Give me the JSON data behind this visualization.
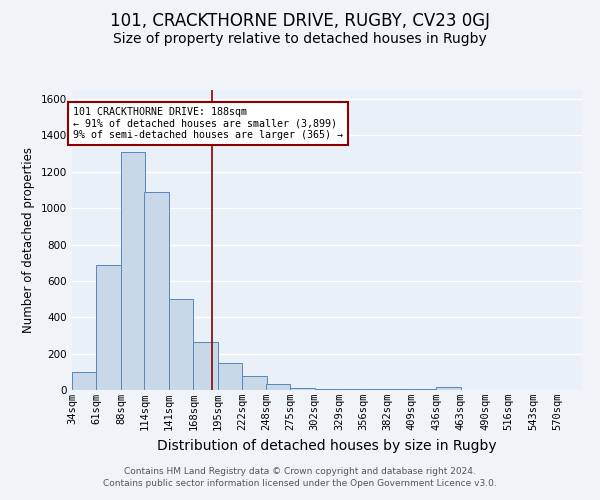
{
  "title1": "101, CRACKTHORNE DRIVE, RUGBY, CV23 0GJ",
  "title2": "Size of property relative to detached houses in Rugby",
  "xlabel": "Distribution of detached houses by size in Rugby",
  "ylabel": "Number of detached properties",
  "bin_edges": [
    34,
    61,
    88,
    114,
    141,
    168,
    195,
    222,
    248,
    275,
    302,
    329,
    356,
    382,
    409,
    436,
    463,
    490,
    516,
    543,
    570
  ],
  "bar_heights": [
    100,
    690,
    1310,
    1090,
    500,
    265,
    150,
    75,
    35,
    10,
    5,
    4,
    3,
    3,
    3,
    15,
    2,
    2,
    2,
    2
  ],
  "bar_color": "#c8d8e8",
  "bar_edge_color": "#5588bb",
  "property_size": 188,
  "vline_color": "#8b0000",
  "annotation_text": "101 CRACKTHORNE DRIVE: 188sqm\n← 91% of detached houses are smaller (3,899)\n9% of semi-detached houses are larger (365) →",
  "annotation_box_color": "white",
  "annotation_box_edge_color": "#8b0000",
  "ylim": [
    0,
    1650
  ],
  "yticks": [
    0,
    200,
    400,
    600,
    800,
    1000,
    1200,
    1400,
    1600
  ],
  "footer": "Contains HM Land Registry data © Crown copyright and database right 2024.\nContains public sector information licensed under the Open Government Licence v3.0.",
  "bg_color": "#f0f4f8",
  "plot_bg_color": "#eaf0f7",
  "grid_color": "white",
  "title1_fontsize": 12,
  "title2_fontsize": 10,
  "xlabel_fontsize": 10,
  "ylabel_fontsize": 8.5,
  "tick_fontsize": 7.5,
  "footer_fontsize": 6.5
}
